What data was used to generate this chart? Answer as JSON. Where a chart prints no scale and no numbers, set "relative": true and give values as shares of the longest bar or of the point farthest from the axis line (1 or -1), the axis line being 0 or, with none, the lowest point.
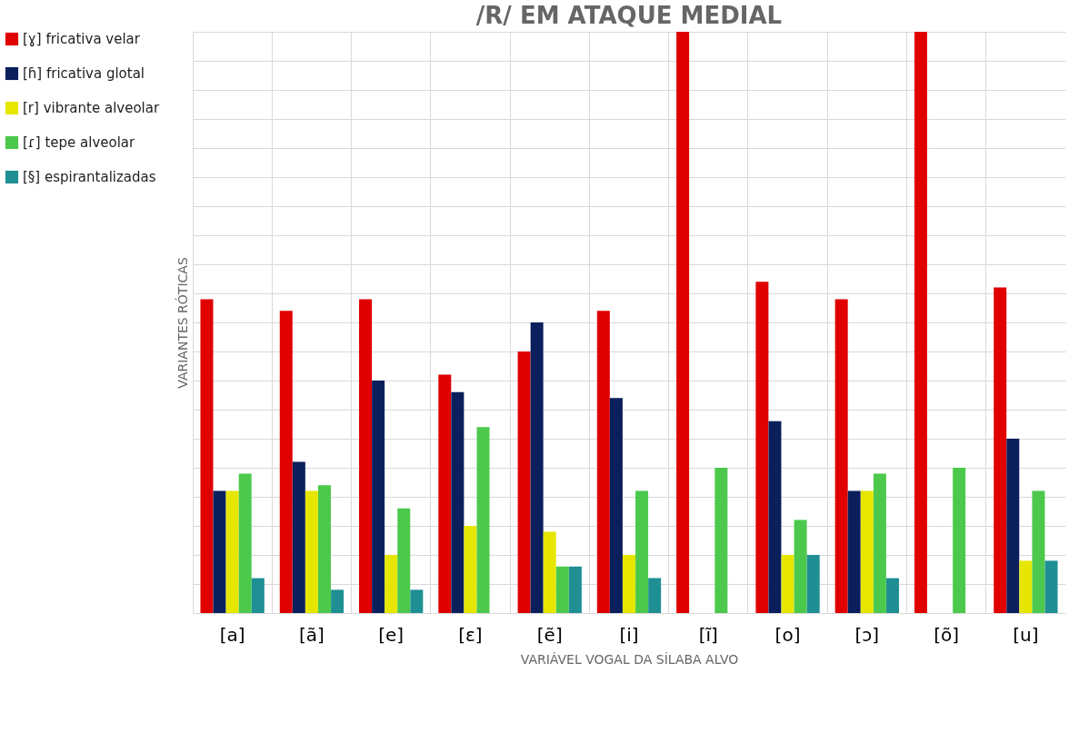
{
  "chart_data": {
    "type": "bar",
    "title": "/R/ EM ATAQUE MEDIAL",
    "xlabel": "VARIÁVEL VOGAL DA SÍLABA ALVO",
    "ylabel": "VARIANTES RÓTICAS",
    "categories": [
      "[a]",
      "[ã]",
      "[e]",
      "[ɛ]",
      "[ẽ]",
      "[i]",
      "[ĩ]",
      "[o]",
      "[ɔ]",
      "[õ]",
      "[u]"
    ],
    "relative": true,
    "grid": true,
    "legend": "left",
    "series": [
      {
        "name": "[ɣ] fricativa velar",
        "color": "#e00000",
        "values": [
          0.54,
          0.52,
          0.54,
          0.41,
          0.45,
          0.52,
          1.0,
          0.57,
          0.54,
          1.0,
          0.56
        ]
      },
      {
        "name": "[ɦ] fricativa glotal",
        "color": "#0a1f5c",
        "values": [
          0.21,
          0.26,
          0.4,
          0.38,
          0.5,
          0.37,
          null,
          0.33,
          0.21,
          null,
          0.3
        ]
      },
      {
        "name": "[r] vibrante alveolar",
        "color": "#e6e600",
        "values": [
          0.21,
          0.21,
          0.1,
          0.15,
          0.14,
          0.1,
          null,
          0.1,
          0.21,
          null,
          0.09
        ]
      },
      {
        "name": "[ɾ] tepe alveolar",
        "color": "#4cc94c",
        "values": [
          0.24,
          0.22,
          0.18,
          0.32,
          0.08,
          0.21,
          0.25,
          0.16,
          0.24,
          0.25,
          0.21
        ]
      },
      {
        "name": "[§] espirantalizadas",
        "color": "#1f8f94",
        "values": [
          0.06,
          0.04,
          0.04,
          null,
          0.08,
          0.06,
          null,
          0.1,
          0.06,
          null,
          0.09
        ]
      }
    ]
  }
}
